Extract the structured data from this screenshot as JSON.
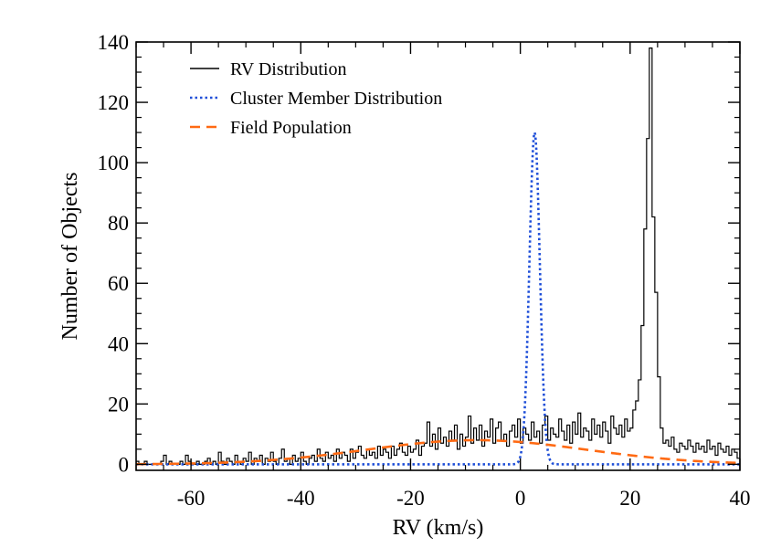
{
  "chart_data": {
    "type": "line",
    "xlabel": "RV (km/s)",
    "ylabel": "Number of Objects",
    "xlim": [
      -70,
      40
    ],
    "ylim": [
      -2,
      140
    ],
    "xticks": [
      -60,
      -40,
      -20,
      0,
      20,
      40
    ],
    "yticks": [
      0,
      20,
      40,
      60,
      80,
      100,
      120,
      140
    ],
    "grid": false,
    "legend_position": "top-left",
    "series": [
      {
        "name": "RV Distribution",
        "style": "solid",
        "color": "#000000",
        "kind": "histogram",
        "bin_width": 0.5,
        "x_start": -70,
        "values": [
          1,
          0,
          0,
          1,
          0,
          0,
          0,
          0,
          0,
          1,
          3,
          0,
          1,
          0,
          0,
          0,
          1,
          0,
          3,
          1,
          0,
          0,
          1,
          0,
          0,
          1,
          2,
          0,
          1,
          0,
          4,
          1,
          0,
          2,
          1,
          0,
          3,
          1,
          0,
          2,
          1,
          4,
          0,
          2,
          1,
          3,
          0,
          2,
          1,
          4,
          1,
          0,
          2,
          5,
          1,
          2,
          0,
          3,
          1,
          2,
          4,
          1,
          0,
          2,
          3,
          1,
          5,
          2,
          1,
          4,
          2,
          3,
          1,
          5,
          2,
          4,
          3,
          1,
          5,
          2,
          4,
          6,
          3,
          2,
          5,
          3,
          4,
          2,
          6,
          3,
          5,
          4,
          2,
          6,
          3,
          5,
          7,
          4,
          3,
          6,
          4,
          5,
          8,
          3,
          6,
          7,
          14,
          6,
          10,
          5,
          12,
          7,
          9,
          6,
          11,
          8,
          13,
          5,
          10,
          6,
          9,
          16,
          7,
          12,
          8,
          13,
          6,
          11,
          9,
          15,
          7,
          12,
          14,
          8,
          10,
          6,
          11,
          13,
          9,
          15,
          7,
          12,
          10,
          8,
          14,
          9,
          11,
          7,
          13,
          16,
          8,
          12,
          10,
          9,
          15,
          11,
          8,
          13,
          7,
          14,
          10,
          17,
          9,
          12,
          11,
          8,
          15,
          10,
          13,
          9,
          14,
          11,
          7,
          16,
          12,
          10,
          13,
          9,
          15,
          11,
          12,
          18,
          21,
          28,
          46,
          78,
          108,
          138,
          82,
          57,
          29,
          12,
          7,
          8,
          6,
          9,
          5,
          4,
          7,
          6,
          5,
          8,
          6,
          4,
          7,
          5,
          6,
          4,
          8,
          5,
          6,
          3,
          7,
          5,
          4,
          6,
          3,
          5,
          4,
          2,
          6,
          3,
          4,
          2,
          5,
          3,
          4,
          2,
          3,
          1,
          4,
          2,
          3,
          1,
          2,
          3,
          1,
          2,
          0,
          2,
          1,
          2,
          0,
          1,
          2,
          0,
          1,
          1,
          0,
          1,
          0,
          0,
          1,
          0,
          0,
          1,
          0,
          0
        ]
      },
      {
        "name": "Cluster Member Distribution",
        "style": "dotted",
        "color": "#1f4fd8",
        "kind": "gaussian",
        "center": 2.6,
        "sigma": 0.95,
        "amplitude": 110
      },
      {
        "name": "Field Population",
        "style": "dashed",
        "color": "#ff6a13",
        "kind": "gaussian",
        "center": -8,
        "sigma": 20,
        "amplitude": 8
      }
    ]
  }
}
